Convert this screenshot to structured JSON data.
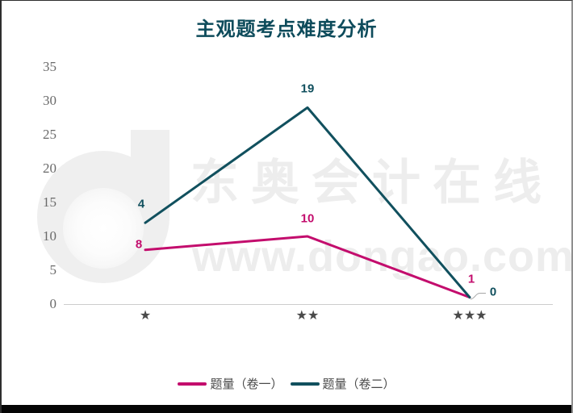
{
  "chart_data": {
    "type": "line",
    "title": "主观题考点难度分析",
    "stacked": true,
    "categories": [
      "★",
      "★★",
      "★★★"
    ],
    "series": [
      {
        "name": "题量（卷一）",
        "values": [
          8,
          10,
          1
        ],
        "color": "#c30d6d"
      },
      {
        "name": "题量（卷二）",
        "values": [
          4,
          19,
          0
        ],
        "color": "#11505e"
      }
    ],
    "yticks": [
      0,
      5,
      10,
      15,
      20,
      25,
      30,
      35
    ],
    "ylim": [
      0,
      35
    ],
    "grid": false,
    "legend_position": "bottom"
  },
  "watermark": {
    "brand_text": "东奥会计在线",
    "url_text": "www.dongao.com",
    "logo_icon": "dongao-d-logo"
  },
  "colors": {
    "title": "#0d4b5b",
    "series1": "#c30d6d",
    "series2": "#11505e",
    "axis_line": "#cccccc",
    "leader_line": "#a6a6a6",
    "tick_label": "#6a6a6a",
    "category_label": "#4a4a4a",
    "legend_text": "#4a4a4a",
    "watermark": "#ededed",
    "bottom_bar": "#000000"
  }
}
